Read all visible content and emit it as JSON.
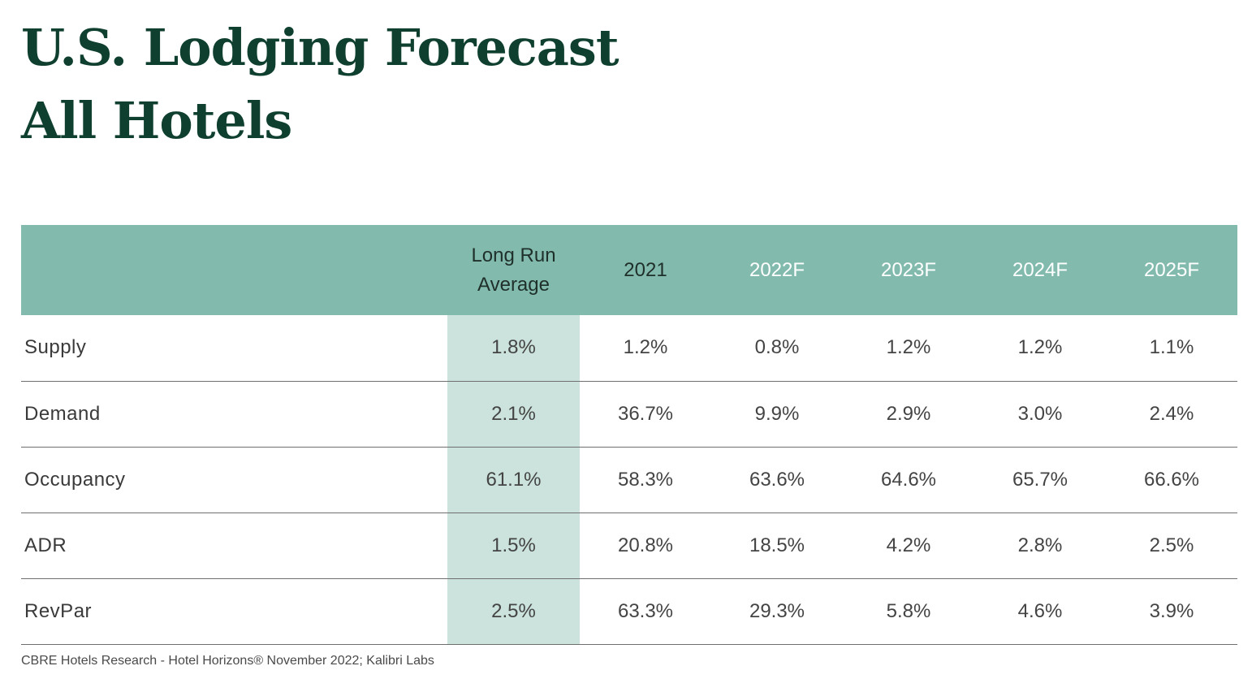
{
  "title_line1": "U.S. Lodging Forecast",
  "title_line2": "All Hotels",
  "source": "CBRE Hotels Research - Hotel Horizons® November 2022;  Kalibri Labs",
  "colors": {
    "title": "#0f3f2e",
    "header_bg": "#82bbad",
    "highlight_col": "#cbe3dc",
    "rule": "#6f6f6f"
  },
  "chart_data": {
    "type": "table",
    "title": "U.S. Lodging Forecast All Hotels",
    "columns": [
      "",
      "Long Run Average",
      "2021",
      "2022F",
      "2023F",
      "2024F",
      "2025F"
    ],
    "header_lines": {
      "long_run_line1": "Long Run",
      "long_run_line2": "Average"
    },
    "rows": [
      {
        "metric": "Supply",
        "values": [
          "1.8%",
          "1.2%",
          "0.8%",
          "1.2%",
          "1.2%",
          "1.1%"
        ]
      },
      {
        "metric": "Demand",
        "values": [
          "2.1%",
          "36.7%",
          "9.9%",
          "2.9%",
          "3.0%",
          "2.4%"
        ]
      },
      {
        "metric": "Occupancy",
        "values": [
          "61.1%",
          "58.3%",
          "63.6%",
          "64.6%",
          "65.7%",
          "66.6%"
        ]
      },
      {
        "metric": "ADR",
        "values": [
          "1.5%",
          "20.8%",
          "18.5%",
          "4.2%",
          "2.8%",
          "2.5%"
        ]
      },
      {
        "metric": "RevPar",
        "values": [
          "2.5%",
          "63.3%",
          "29.3%",
          "5.8%",
          "4.6%",
          "3.9%"
        ]
      }
    ],
    "highlighted_column": "Long Run Average"
  }
}
